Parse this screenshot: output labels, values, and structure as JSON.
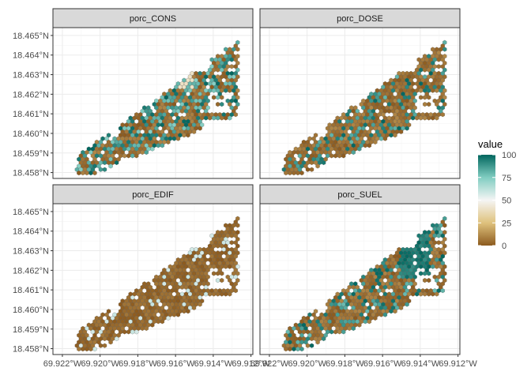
{
  "chart_data": {
    "type": "heatmap",
    "subtype": "faceted hexagonal map",
    "panels": [
      "porc_CONS",
      "porc_DOSE",
      "porc_EDIF",
      "porc_SUEL"
    ],
    "x_ticks": [
      "69.922°W",
      "69.920°W",
      "69.918°W",
      "69.916°W",
      "69.914°W",
      "69.912°W"
    ],
    "x_tick_values": [
      -69.922,
      -69.92,
      -69.918,
      -69.916,
      -69.914,
      -69.912
    ],
    "y_ticks": [
      "18.458°N",
      "18.459°N",
      "18.460°N",
      "18.461°N",
      "18.462°N",
      "18.463°N",
      "18.464°N",
      "18.465°N"
    ],
    "y_tick_values": [
      18.458,
      18.459,
      18.46,
      18.461,
      18.462,
      18.463,
      18.464,
      18.465
    ],
    "xlim": [
      -69.9225,
      -69.9119
    ],
    "ylim": [
      18.4577,
      18.4654
    ],
    "legend": {
      "title": "value",
      "ticks": [
        "100",
        "75",
        "50",
        "25",
        "0"
      ],
      "tick_values": [
        100,
        75,
        50,
        25,
        0
      ],
      "range": [
        0,
        100
      ],
      "position": "right"
    },
    "colors": {
      "low": "#8c5a1e",
      "mid_low": "#dfc27d",
      "mid": "#f5f5f5",
      "mid_high": "#80cdc1",
      "high": "#01665e"
    },
    "grid": true
  }
}
